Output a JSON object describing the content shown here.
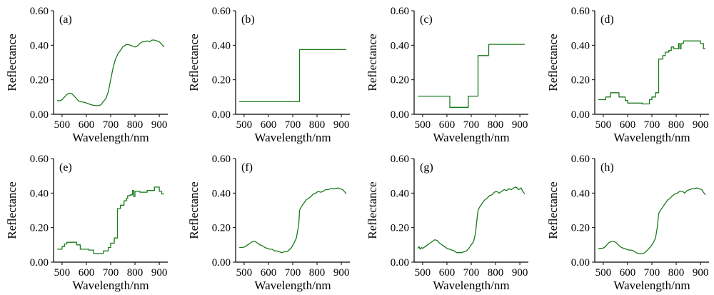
{
  "line_color": "#1a7a1a",
  "chart_data": [
    {
      "type": "line",
      "panel_label": "(a)",
      "xlabel": "Wavelength/nm",
      "ylabel": "Reflectance",
      "xlim": [
        465,
        935
      ],
      "ylim": [
        0,
        0.6
      ],
      "xticks": [
        500,
        600,
        700,
        800,
        900
      ],
      "yticks": [
        "0.00",
        "0.20",
        "0.40",
        "0.60"
      ],
      "series": [
        {
          "x": [
            480,
            490,
            500,
            510,
            520,
            530,
            540,
            550,
            560,
            570,
            580,
            590,
            600,
            610,
            620,
            630,
            640,
            650,
            660,
            670,
            680,
            690,
            700,
            710,
            720,
            730,
            740,
            750,
            760,
            770,
            780,
            790,
            800,
            810,
            820,
            830,
            840,
            850,
            860,
            870,
            880,
            890,
            900,
            910,
            920
          ],
          "y": [
            0.08,
            0.078,
            0.085,
            0.1,
            0.115,
            0.122,
            0.12,
            0.105,
            0.09,
            0.075,
            0.072,
            0.07,
            0.065,
            0.06,
            0.055,
            0.052,
            0.05,
            0.05,
            0.055,
            0.075,
            0.09,
            0.13,
            0.2,
            0.27,
            0.32,
            0.35,
            0.37,
            0.39,
            0.4,
            0.405,
            0.4,
            0.395,
            0.39,
            0.395,
            0.41,
            0.42,
            0.42,
            0.425,
            0.42,
            0.43,
            0.43,
            0.425,
            0.42,
            0.405,
            0.39
          ]
        }
      ]
    },
    {
      "type": "line",
      "panel_label": "(b)",
      "xlabel": "Wavelength/nm",
      "ylabel": "Reflectance",
      "xlim": [
        465,
        935
      ],
      "ylim": [
        0,
        0.6
      ],
      "xticks": [
        500,
        600,
        700,
        800,
        900
      ],
      "yticks": [
        "0.00",
        "0.20",
        "0.40",
        "0.60"
      ],
      "series": [
        {
          "x": [
            480,
            728,
            728,
            920
          ],
          "y": [
            0.073,
            0.073,
            0.375,
            0.375
          ]
        }
      ]
    },
    {
      "type": "line",
      "panel_label": "(c)",
      "xlabel": "Wavelength/nm",
      "ylabel": "Reflectance",
      "xlim": [
        465,
        935
      ],
      "ylim": [
        0,
        0.6
      ],
      "xticks": [
        500,
        600,
        700,
        800,
        900
      ],
      "yticks": [
        "0.00",
        "0.20",
        "0.40",
        "0.60"
      ],
      "series": [
        {
          "x": [
            480,
            612,
            612,
            688,
            688,
            728,
            728,
            772,
            772,
            920
          ],
          "y": [
            0.105,
            0.105,
            0.04,
            0.04,
            0.105,
            0.105,
            0.34,
            0.34,
            0.405,
            0.405
          ]
        }
      ]
    },
    {
      "type": "line",
      "panel_label": "(d)",
      "xlabel": "Wavelength/nm",
      "ylabel": "Reflectance",
      "xlim": [
        465,
        935
      ],
      "ylim": [
        0,
        0.6
      ],
      "xticks": [
        500,
        600,
        700,
        800,
        900
      ],
      "yticks": [
        "0.00",
        "0.20",
        "0.40",
        "0.60"
      ],
      "series": [
        {
          "x": [
            480,
            510,
            510,
            530,
            530,
            565,
            565,
            590,
            590,
            600,
            600,
            660,
            660,
            690,
            690,
            700,
            700,
            715,
            715,
            728,
            728,
            745,
            745,
            755,
            755,
            770,
            770,
            780,
            780,
            790,
            790,
            810,
            810,
            815,
            815,
            820,
            820,
            830,
            830,
            900,
            900,
            912,
            912,
            920
          ],
          "y": [
            0.085,
            0.085,
            0.1,
            0.1,
            0.125,
            0.125,
            0.1,
            0.1,
            0.08,
            0.08,
            0.065,
            0.065,
            0.06,
            0.06,
            0.085,
            0.085,
            0.1,
            0.1,
            0.125,
            0.125,
            0.32,
            0.32,
            0.34,
            0.34,
            0.36,
            0.36,
            0.37,
            0.37,
            0.39,
            0.39,
            0.38,
            0.38,
            0.41,
            0.41,
            0.38,
            0.38,
            0.41,
            0.41,
            0.425,
            0.425,
            0.41,
            0.41,
            0.38,
            0.38
          ]
        }
      ]
    },
    {
      "type": "line",
      "panel_label": "(e)",
      "xlabel": "Wavelength/nm",
      "ylabel": "Reflectance",
      "xlim": [
        465,
        935
      ],
      "ylim": [
        0,
        0.6
      ],
      "xticks": [
        500,
        600,
        700,
        800,
        900
      ],
      "yticks": [
        "0.00",
        "0.20",
        "0.40",
        "0.60"
      ],
      "series": [
        {
          "x": [
            480,
            500,
            500,
            510,
            510,
            520,
            520,
            560,
            560,
            575,
            575,
            610,
            610,
            630,
            630,
            670,
            670,
            690,
            690,
            700,
            700,
            715,
            715,
            728,
            728,
            740,
            740,
            755,
            755,
            765,
            765,
            770,
            770,
            780,
            780,
            790,
            790,
            795,
            795,
            800,
            800,
            820,
            820,
            850,
            850,
            880,
            880,
            900,
            900,
            910,
            910,
            920
          ],
          "y": [
            0.075,
            0.075,
            0.09,
            0.09,
            0.105,
            0.105,
            0.115,
            0.115,
            0.1,
            0.1,
            0.075,
            0.075,
            0.07,
            0.07,
            0.05,
            0.05,
            0.065,
            0.065,
            0.085,
            0.085,
            0.11,
            0.11,
            0.14,
            0.14,
            0.31,
            0.31,
            0.33,
            0.33,
            0.355,
            0.355,
            0.37,
            0.37,
            0.385,
            0.385,
            0.39,
            0.39,
            0.415,
            0.415,
            0.38,
            0.38,
            0.41,
            0.41,
            0.405,
            0.405,
            0.415,
            0.415,
            0.435,
            0.435,
            0.41,
            0.41,
            0.395,
            0.395
          ]
        }
      ]
    },
    {
      "type": "line",
      "panel_label": "(f)",
      "xlabel": "Wavelength/nm",
      "ylabel": "Reflectance",
      "xlim": [
        465,
        935
      ],
      "ylim": [
        0,
        0.6
      ],
      "xticks": [
        500,
        600,
        700,
        800,
        900
      ],
      "yticks": [
        "0.00",
        "0.20",
        "0.40",
        "0.60"
      ],
      "series": [
        {
          "x": [
            480,
            495,
            505,
            515,
            525,
            535,
            545,
            555,
            565,
            575,
            585,
            595,
            605,
            615,
            625,
            635,
            645,
            655,
            665,
            675,
            685,
            695,
            705,
            715,
            725,
            728,
            735,
            745,
            755,
            765,
            775,
            785,
            795,
            805,
            815,
            825,
            835,
            845,
            855,
            865,
            875,
            885,
            895,
            905,
            912,
            920
          ],
          "y": [
            0.085,
            0.085,
            0.09,
            0.1,
            0.11,
            0.12,
            0.12,
            0.11,
            0.1,
            0.095,
            0.085,
            0.08,
            0.075,
            0.075,
            0.065,
            0.065,
            0.06,
            0.055,
            0.06,
            0.06,
            0.07,
            0.085,
            0.11,
            0.14,
            0.22,
            0.3,
            0.32,
            0.34,
            0.36,
            0.37,
            0.38,
            0.395,
            0.4,
            0.41,
            0.405,
            0.41,
            0.42,
            0.42,
            0.425,
            0.425,
            0.425,
            0.43,
            0.425,
            0.42,
            0.41,
            0.395
          ]
        }
      ]
    },
    {
      "type": "line",
      "panel_label": "(g)",
      "xlabel": "Wavelength/nm",
      "ylabel": "Reflectance",
      "xlim": [
        465,
        935
      ],
      "ylim": [
        0,
        0.6
      ],
      "xticks": [
        500,
        600,
        700,
        800,
        900
      ],
      "yticks": [
        "0.00",
        "0.20",
        "0.40",
        "0.60"
      ],
      "series": [
        {
          "x": [
            480,
            485,
            490,
            495,
            500,
            510,
            520,
            530,
            540,
            550,
            560,
            570,
            580,
            590,
            600,
            610,
            620,
            630,
            640,
            650,
            660,
            670,
            680,
            690,
            700,
            710,
            718,
            722,
            728,
            735,
            745,
            755,
            765,
            775,
            785,
            795,
            805,
            815,
            825,
            835,
            845,
            855,
            865,
            875,
            885,
            895,
            905,
            912,
            920
          ],
          "y": [
            0.08,
            0.09,
            0.075,
            0.085,
            0.08,
            0.09,
            0.1,
            0.11,
            0.12,
            0.13,
            0.125,
            0.11,
            0.1,
            0.09,
            0.08,
            0.075,
            0.07,
            0.065,
            0.055,
            0.055,
            0.055,
            0.06,
            0.065,
            0.08,
            0.1,
            0.12,
            0.17,
            0.23,
            0.3,
            0.32,
            0.34,
            0.36,
            0.37,
            0.385,
            0.39,
            0.405,
            0.41,
            0.4,
            0.41,
            0.42,
            0.415,
            0.425,
            0.42,
            0.43,
            0.435,
            0.42,
            0.43,
            0.41,
            0.395
          ]
        }
      ]
    },
    {
      "type": "line",
      "panel_label": "(h)",
      "xlabel": "Wavelength/nm",
      "ylabel": "Reflectance",
      "xlim": [
        465,
        935
      ],
      "ylim": [
        0,
        0.6
      ],
      "xticks": [
        500,
        600,
        700,
        800,
        900
      ],
      "yticks": [
        "0.00",
        "0.20",
        "0.40",
        "0.60"
      ],
      "series": [
        {
          "x": [
            480,
            495,
            505,
            515,
            525,
            535,
            545,
            555,
            565,
            575,
            585,
            595,
            605,
            615,
            625,
            635,
            645,
            655,
            665,
            675,
            685,
            695,
            705,
            715,
            722,
            728,
            735,
            745,
            755,
            765,
            775,
            785,
            795,
            805,
            815,
            825,
            835,
            845,
            855,
            865,
            875,
            885,
            895,
            905,
            912,
            920
          ],
          "y": [
            0.08,
            0.08,
            0.085,
            0.1,
            0.115,
            0.12,
            0.12,
            0.11,
            0.095,
            0.085,
            0.08,
            0.075,
            0.07,
            0.07,
            0.065,
            0.055,
            0.05,
            0.05,
            0.05,
            0.06,
            0.075,
            0.09,
            0.11,
            0.14,
            0.2,
            0.28,
            0.3,
            0.32,
            0.34,
            0.36,
            0.37,
            0.385,
            0.395,
            0.4,
            0.41,
            0.41,
            0.4,
            0.415,
            0.42,
            0.425,
            0.425,
            0.43,
            0.425,
            0.42,
            0.405,
            0.39
          ]
        }
      ]
    }
  ]
}
